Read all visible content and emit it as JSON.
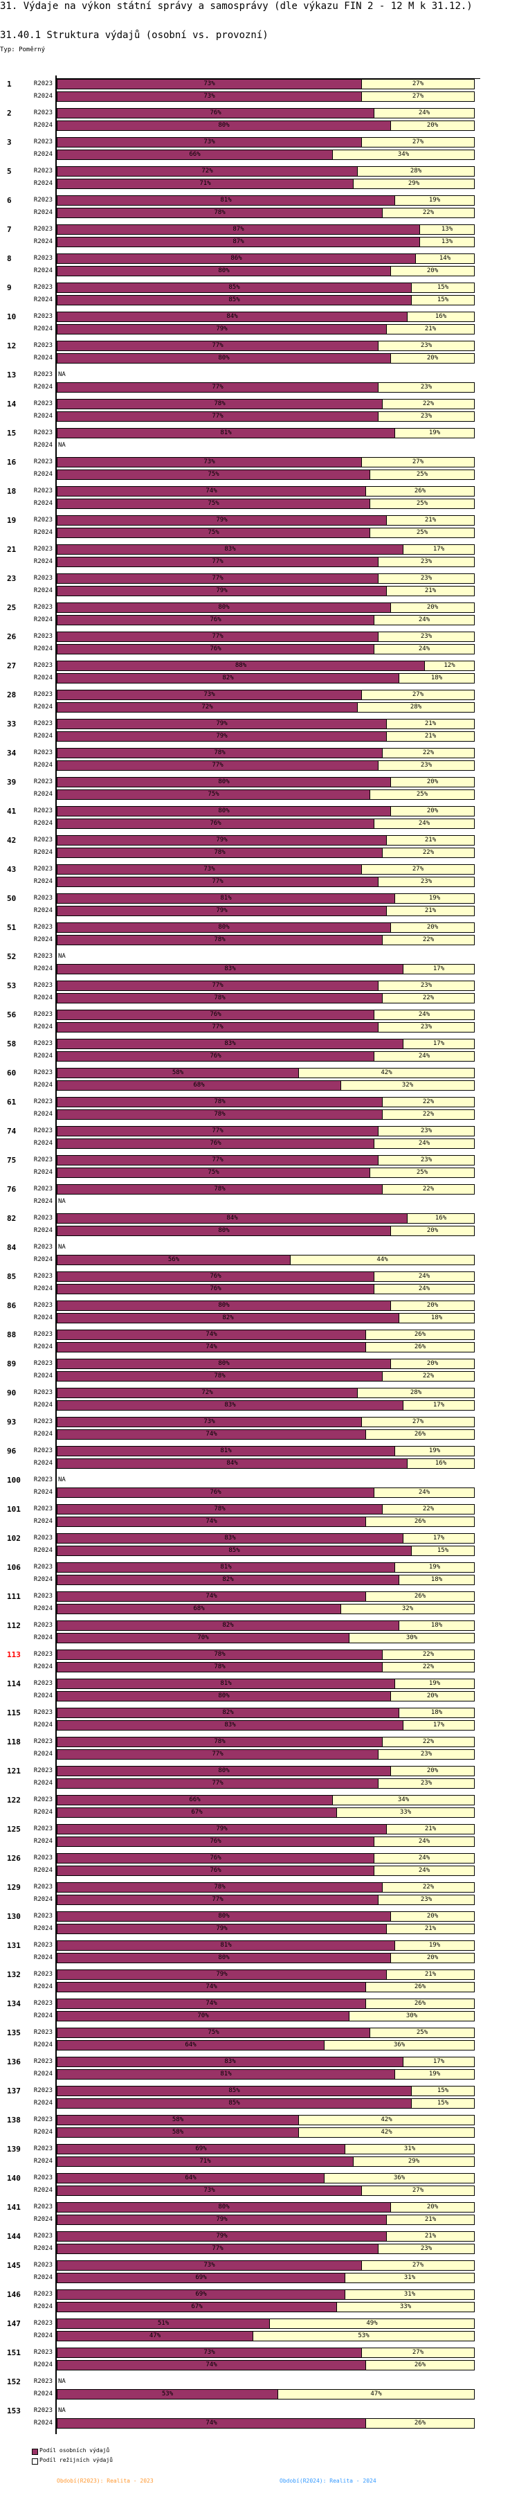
{
  "header": {
    "title": "31. Výdaje na výkon státní správy a samosprávy (dle výkazu FIN 2 - 12 M k 31.12.)",
    "subtitle": "31.40.1 Struktura výdajů (osobní vs. provozní)",
    "type_label": "Typ: Poměrný"
  },
  "chart_data": {
    "type": "bar",
    "orientation": "horizontal",
    "stacked": "percent",
    "title": "31.40.1 Struktura výdajů (osobní vs. provozní)",
    "xlim": [
      0,
      100
    ],
    "unit": "%",
    "highlighted_category": "113",
    "na_label": "NA",
    "periods": [
      "R2023",
      "R2024"
    ],
    "categories": [
      "1",
      "2",
      "3",
      "5",
      "6",
      "7",
      "8",
      "9",
      "10",
      "12",
      "13",
      "14",
      "15",
      "16",
      "18",
      "19",
      "21",
      "23",
      "25",
      "26",
      "27",
      "28",
      "33",
      "34",
      "39",
      "41",
      "42",
      "43",
      "50",
      "51",
      "52",
      "53",
      "56",
      "58",
      "60",
      "61",
      "74",
      "75",
      "76",
      "82",
      "84",
      "85",
      "86",
      "88",
      "89",
      "90",
      "93",
      "96",
      "100",
      "101",
      "102",
      "106",
      "111",
      "112",
      "113",
      "114",
      "115",
      "118",
      "121",
      "122",
      "125",
      "126",
      "129",
      "130",
      "131",
      "132",
      "134",
      "135",
      "136",
      "137",
      "138",
      "139",
      "140",
      "141",
      "144",
      "145",
      "146",
      "147",
      "151",
      "152",
      "153"
    ],
    "series": [
      {
        "name": "Podíl osobních výdajů",
        "color": "#993366",
        "R2023": [
          73,
          76,
          73,
          72,
          81,
          87,
          86,
          85,
          84,
          77,
          null,
          78,
          81,
          73,
          74,
          79,
          83,
          77,
          80,
          77,
          88,
          73,
          79,
          78,
          80,
          80,
          79,
          73,
          81,
          80,
          null,
          77,
          76,
          83,
          58,
          78,
          77,
          77,
          78,
          84,
          null,
          76,
          80,
          74,
          80,
          72,
          73,
          81,
          null,
          78,
          83,
          81,
          74,
          82,
          78,
          81,
          82,
          78,
          80,
          66,
          79,
          76,
          78,
          80,
          81,
          79,
          74,
          75,
          83,
          85,
          58,
          69,
          64,
          80,
          79,
          73,
          69,
          51,
          73,
          null,
          null
        ],
        "R2024": [
          73,
          80,
          66,
          71,
          78,
          87,
          80,
          85,
          79,
          80,
          77,
          77,
          null,
          75,
          75,
          75,
          77,
          79,
          76,
          76,
          82,
          72,
          79,
          77,
          75,
          76,
          78,
          77,
          79,
          78,
          83,
          78,
          77,
          76,
          68,
          78,
          76,
          75,
          null,
          80,
          56,
          76,
          82,
          74,
          78,
          83,
          74,
          84,
          76,
          74,
          85,
          82,
          68,
          70,
          78,
          80,
          83,
          77,
          77,
          67,
          76,
          76,
          77,
          79,
          80,
          74,
          70,
          64,
          81,
          85,
          58,
          71,
          73,
          79,
          77,
          69,
          67,
          47,
          74,
          53,
          74
        ]
      },
      {
        "name": "Podíl režijních výdajů",
        "color": "#ffffcc",
        "R2023": [
          27,
          24,
          27,
          28,
          19,
          13,
          14,
          15,
          16,
          23,
          null,
          22,
          19,
          27,
          26,
          21,
          17,
          23,
          20,
          23,
          12,
          27,
          21,
          22,
          20,
          20,
          21,
          27,
          19,
          20,
          null,
          23,
          24,
          17,
          42,
          22,
          23,
          23,
          22,
          16,
          null,
          24,
          20,
          26,
          20,
          28,
          27,
          19,
          null,
          22,
          17,
          19,
          26,
          18,
          22,
          19,
          18,
          22,
          20,
          34,
          21,
          24,
          22,
          20,
          19,
          21,
          26,
          25,
          17,
          15,
          42,
          31,
          36,
          20,
          21,
          27,
          31,
          49,
          27,
          null,
          null
        ],
        "R2024": [
          27,
          20,
          34,
          29,
          22,
          13,
          20,
          15,
          21,
          20,
          23,
          23,
          null,
          25,
          25,
          25,
          23,
          21,
          24,
          24,
          18,
          28,
          21,
          23,
          25,
          24,
          22,
          23,
          21,
          22,
          17,
          22,
          23,
          24,
          32,
          22,
          24,
          25,
          null,
          20,
          44,
          24,
          18,
          26,
          22,
          17,
          26,
          16,
          24,
          26,
          15,
          18,
          32,
          30,
          22,
          20,
          17,
          23,
          23,
          33,
          24,
          24,
          23,
          21,
          20,
          26,
          30,
          36,
          19,
          15,
          42,
          29,
          27,
          21,
          23,
          31,
          33,
          53,
          26,
          47,
          26
        ]
      }
    ]
  },
  "legend": {
    "items": [
      {
        "label": "Podíl osobních výdajů",
        "color": "#993366"
      },
      {
        "label": "Podíl režijních výdajů",
        "color": "#ffffff"
      }
    ]
  },
  "footer": {
    "period_2023": "Období(R2023): Realita - 2023",
    "period_2023_color": "#ff9933",
    "period_2024": "Období(R2024): Realita - 2024",
    "period_2024_color": "#3399ff"
  }
}
